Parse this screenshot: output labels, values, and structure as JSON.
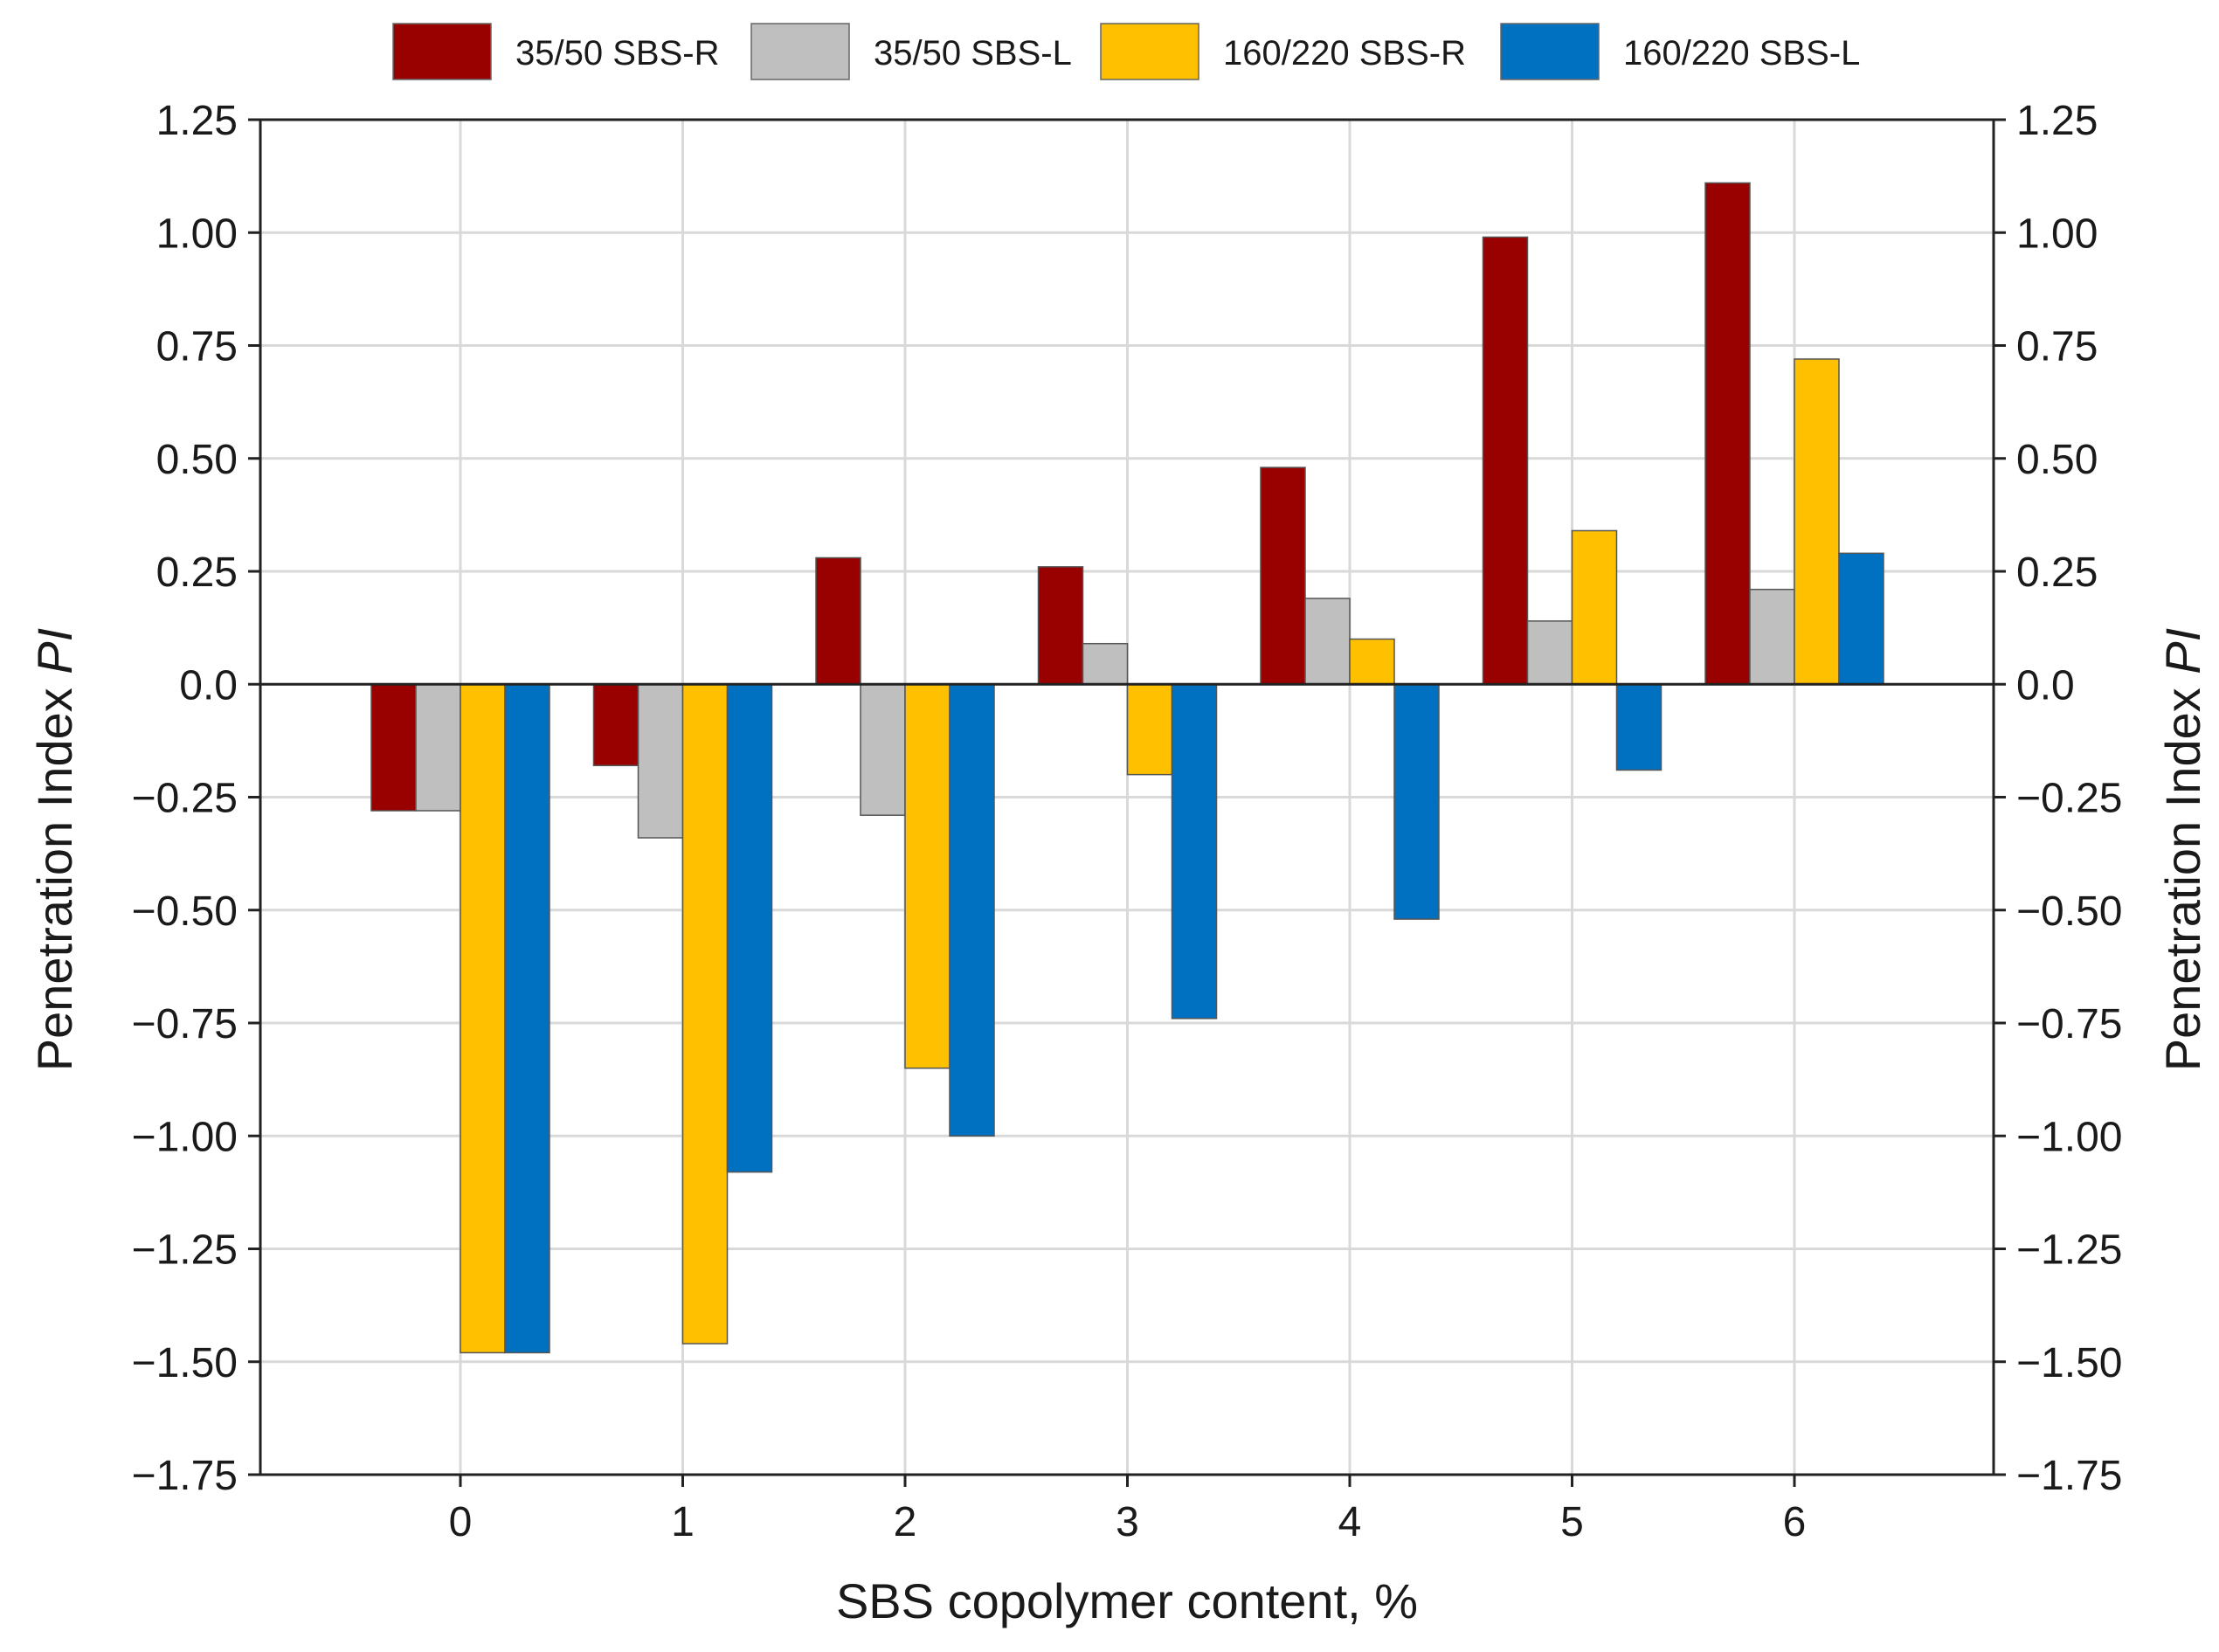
{
  "chart_data": {
    "type": "bar",
    "title": "",
    "xlabel": "SBS copolymer content, %",
    "ylabel_prefix": "Penetration Index ",
    "ylabel_italic": "PI",
    "categories": [
      "0",
      "1",
      "2",
      "3",
      "4",
      "5",
      "6"
    ],
    "series": [
      {
        "name": "35/50 SBS-R",
        "color": "#990000",
        "values": [
          -0.28,
          -0.18,
          0.28,
          0.26,
          0.48,
          0.99,
          1.11
        ]
      },
      {
        "name": "35/50 SBS-L",
        "color": "#bfbfbf",
        "values": [
          -0.28,
          -0.34,
          -0.29,
          0.09,
          0.19,
          0.14,
          0.21
        ]
      },
      {
        "name": "160/220 SBS-R",
        "color": "#ffc000",
        "values": [
          -1.48,
          -1.46,
          -0.85,
          -0.2,
          0.1,
          0.34,
          0.72
        ]
      },
      {
        "name": "160/220 SBS-L",
        "color": "#0070c0",
        "values": [
          -1.48,
          -1.08,
          -1.0,
          -0.74,
          -0.52,
          -0.19,
          0.29
        ]
      }
    ],
    "ylim": [
      -1.75,
      1.25
    ],
    "yticks": [
      1.25,
      1.0,
      0.75,
      0.5,
      0.25,
      0.0,
      -0.25,
      -0.5,
      -0.75,
      -1.0,
      -1.25,
      -1.5,
      -1.75
    ],
    "ytick_labels": [
      "1.25",
      "1.00",
      "0.75",
      "0.50",
      "0.25",
      "0.0",
      "−0.25",
      "−0.50",
      "−0.75",
      "−1.00",
      "−1.25",
      "−1.50",
      "−1.75"
    ],
    "grid": true,
    "legend_position": "top",
    "secondary_y_axis": true
  }
}
